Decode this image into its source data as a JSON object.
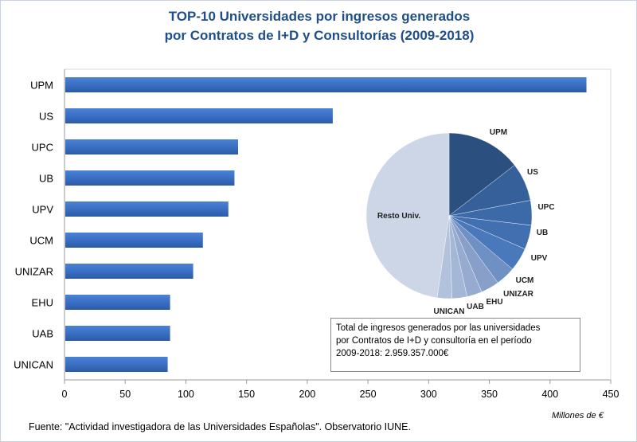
{
  "chart_data": [
    {
      "type": "bar",
      "orientation": "horizontal",
      "title": "TOP-10 Universidades por ingresos generados por Contratos de I+D y Consultorías (2009-2018)",
      "title_lines": [
        "TOP-10 Universidades por ingresos generados",
        "por Contratos de I+D y Consultorías (2009-2018)"
      ],
      "categories": [
        "UPM",
        "US",
        "UPC",
        "UB",
        "UPV",
        "UCM",
        "UNIZAR",
        "EHU",
        "UAB",
        "UNICAN"
      ],
      "values": [
        430,
        221,
        143,
        140,
        135,
        114,
        106,
        87,
        87,
        85
      ],
      "xlabel": "Millones de €",
      "xlim": [
        0,
        450
      ],
      "xticks": [
        0,
        50,
        100,
        150,
        200,
        250,
        300,
        350,
        400,
        450
      ],
      "grid": false,
      "bar_color": "#3a6fc4"
    },
    {
      "type": "pie",
      "labels": [
        "UPM",
        "US",
        "UPC",
        "UB",
        "UPV",
        "UCM",
        "UNIZAR",
        "EHU",
        "UAB",
        "UNICAN",
        "Resto Univ."
      ],
      "values": [
        430,
        221,
        143,
        140,
        135,
        114,
        106,
        87,
        87,
        85,
        1411
      ],
      "colors": [
        "#2b4f7e",
        "#35609a",
        "#3c6aa8",
        "#416fb0",
        "#4a79bb",
        "#6f90c4",
        "#889fc9",
        "#97abd0",
        "#a5b7d6",
        "#b3c2dc",
        "#ccd6e6"
      ]
    }
  ],
  "note": {
    "lines": [
      "Total de ingresos generados por las universidades",
      "por Contratos de I+D y consultoría en el período",
      "2009-2018: 2.959.357.000€"
    ]
  },
  "source": "Fuente: \"Actividad investigadora de las Universidades Españolas\". Observatorio IUNE."
}
